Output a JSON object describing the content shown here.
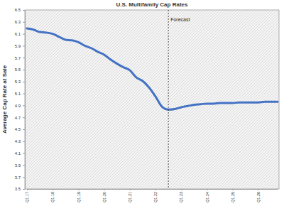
{
  "chart_data": {
    "type": "line",
    "title": "U.S. Multifamily Cap Rates",
    "ylabel": "Average Cap Rate at Sale",
    "categories": [
      "Q1.17",
      null,
      null,
      null,
      "Q1.18",
      null,
      null,
      null,
      "Q1.19",
      null,
      null,
      null,
      "Q1.20",
      null,
      null,
      null,
      "Q1.21",
      null,
      null,
      null,
      "Q1.22",
      null,
      null,
      null,
      "Q1.23",
      null,
      null,
      null,
      "Q1.24",
      null,
      null,
      null,
      "Q1.25",
      null,
      null,
      null,
      "Q1.26",
      null,
      null,
      null
    ],
    "values": [
      6.19,
      6.17,
      6.13,
      6.12,
      6.1,
      6.05,
      6.0,
      5.99,
      5.96,
      5.9,
      5.86,
      5.8,
      5.75,
      5.67,
      5.6,
      5.54,
      5.49,
      5.37,
      5.31,
      5.2,
      5.05,
      4.88,
      4.83,
      4.84,
      4.87,
      4.89,
      4.91,
      4.92,
      4.93,
      4.93,
      4.94,
      4.94,
      4.94,
      4.95,
      4.95,
      4.95,
      4.95,
      4.96,
      4.96,
      4.96
    ],
    "color": "#4472c4",
    "ylim": [
      3.5,
      6.5
    ],
    "yticks": [
      3.5,
      3.7,
      3.9,
      4.1,
      4.3,
      4.5,
      4.7,
      4.9,
      5.1,
      5.3,
      5.5,
      5.7,
      5.9,
      6.1,
      6.3,
      6.5
    ],
    "annotations": [
      {
        "text": "Forecast",
        "x": 22
      }
    ]
  }
}
